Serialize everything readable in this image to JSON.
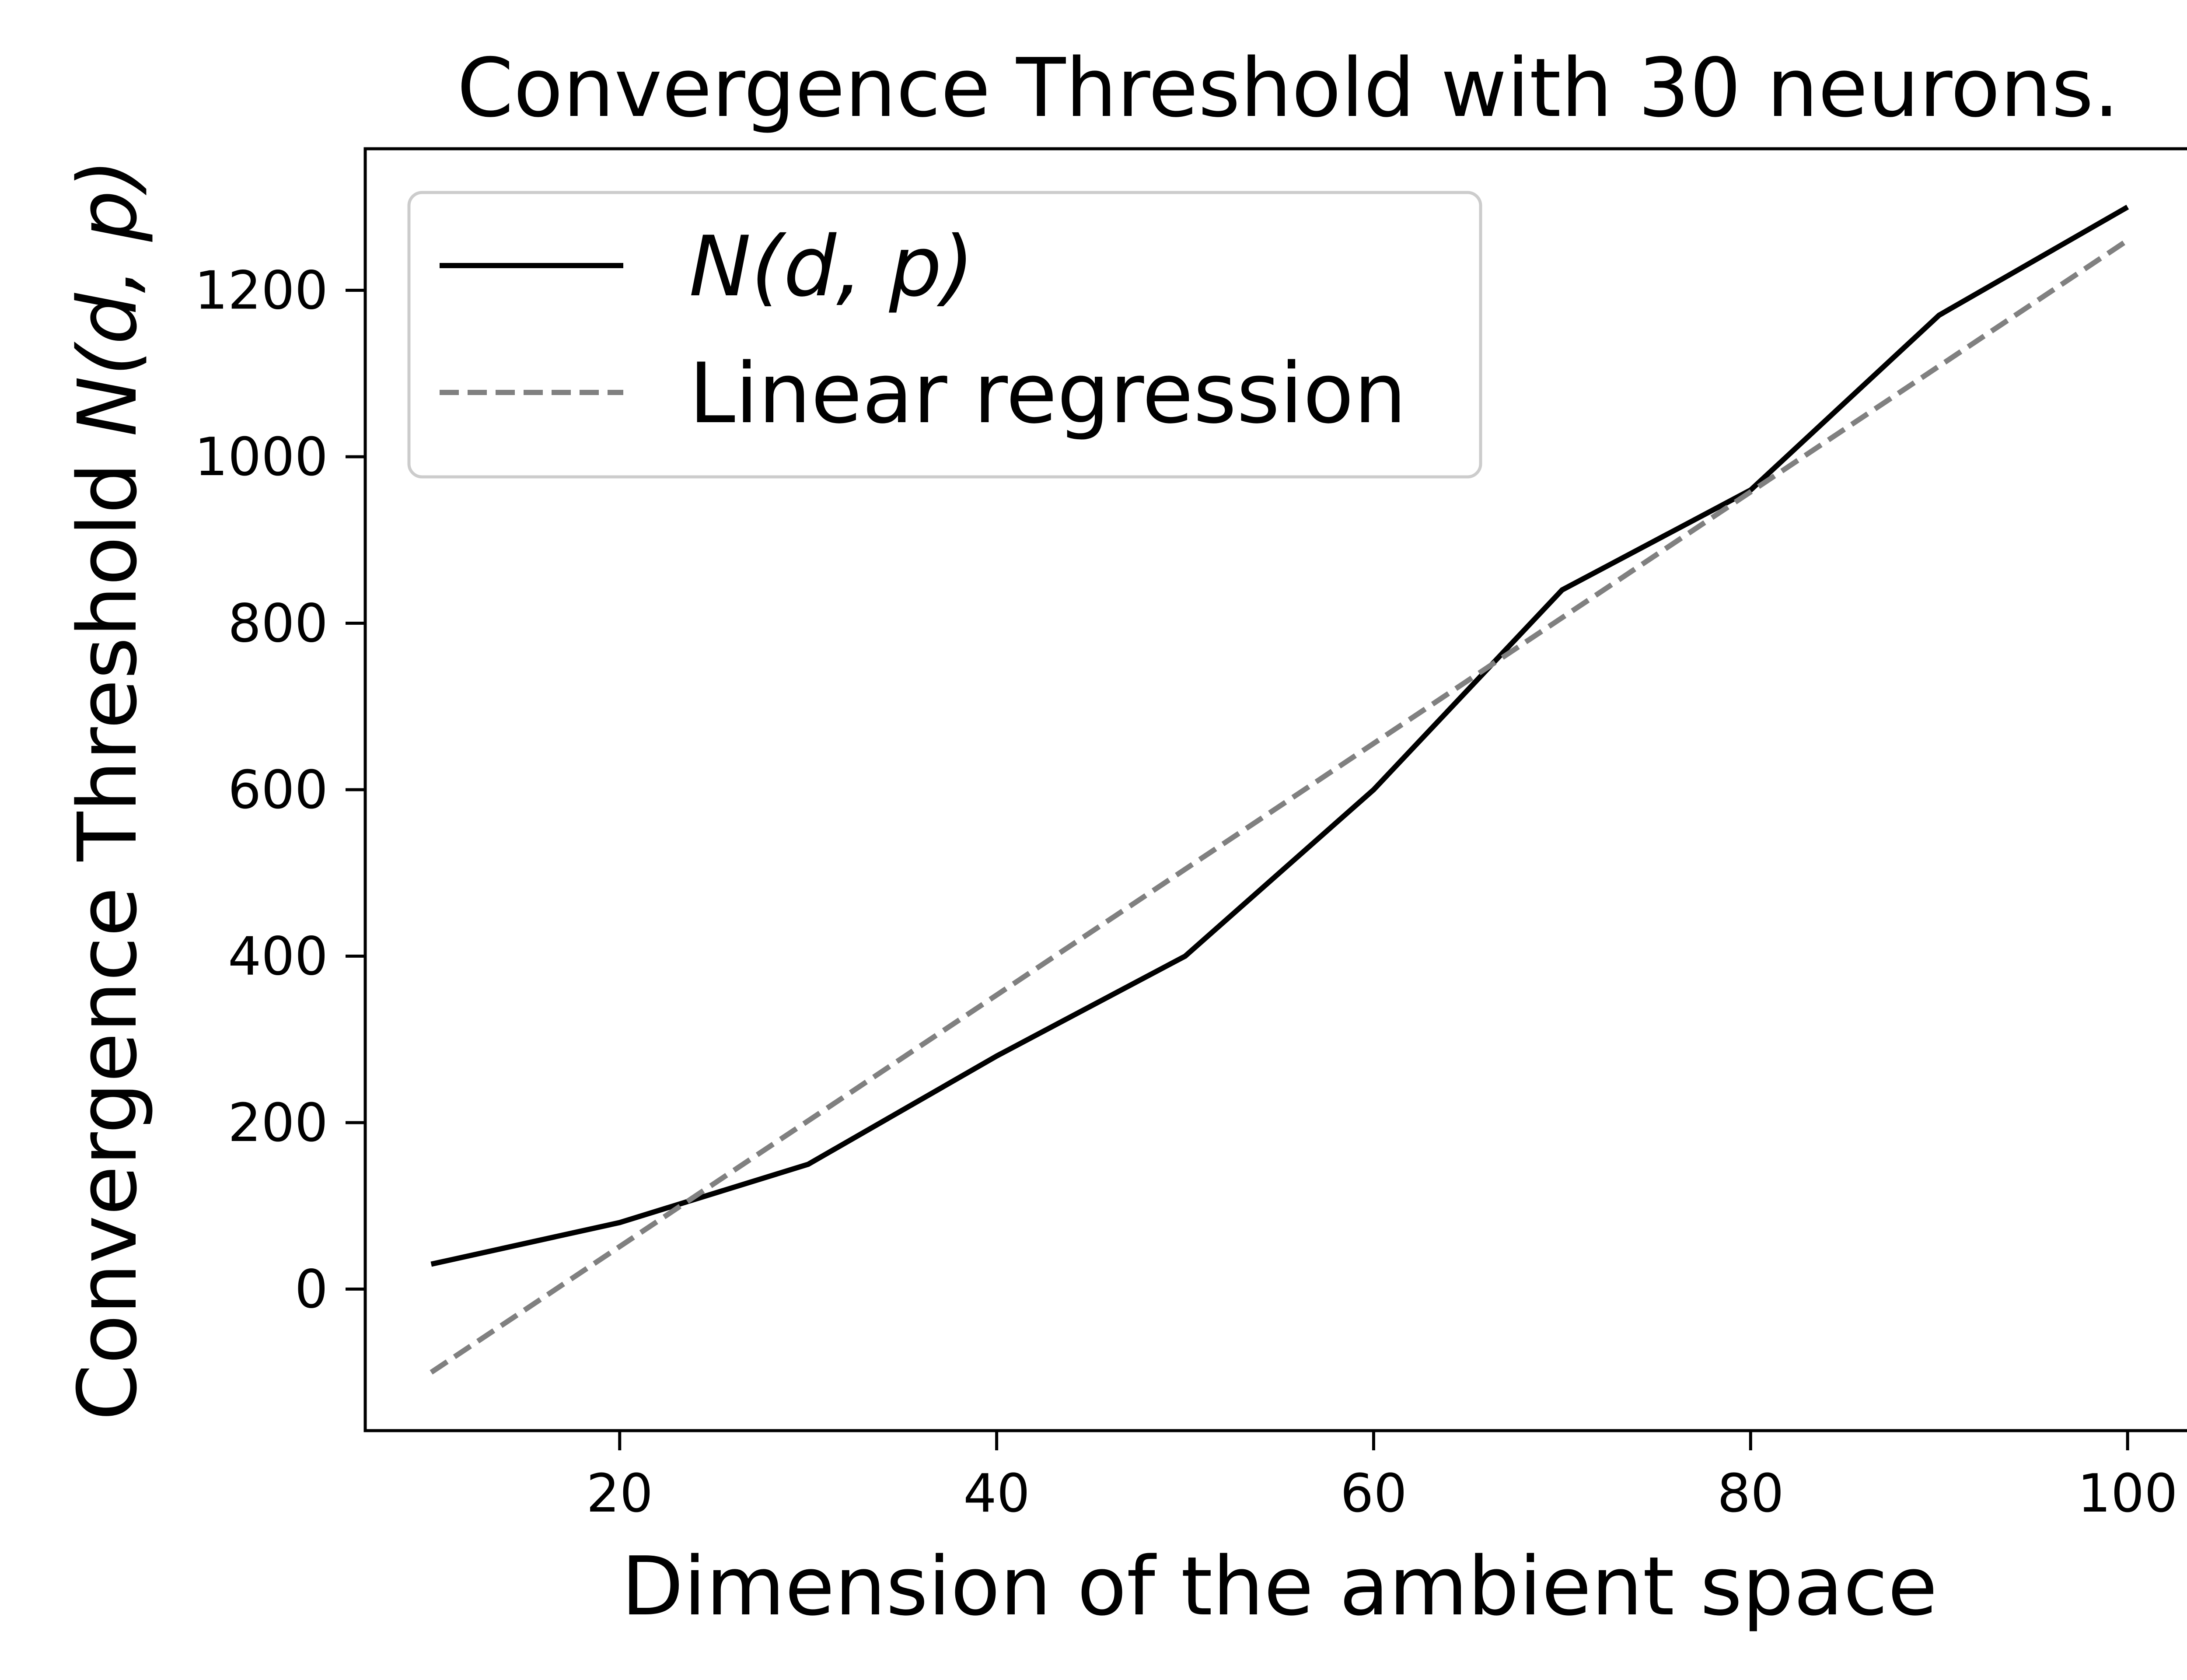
{
  "chart_data": {
    "type": "line",
    "title": "Convergence Threshold with 30 neurons.",
    "xlabel": "Dimension of the ambient space",
    "ylabel": {
      "prefix": "Convergence Threshold ",
      "math": "N(d, p)"
    },
    "xlim": [
      6.5,
      103.5
    ],
    "ylim": [
      -170,
      1370
    ],
    "xticks": [
      20,
      40,
      60,
      80,
      100
    ],
    "yticks": [
      0,
      200,
      400,
      600,
      800,
      1000,
      1200
    ],
    "xtick_labels": [
      "20",
      "40",
      "60",
      "80",
      "100"
    ],
    "ytick_labels": [
      "0",
      "200",
      "400",
      "600",
      "800",
      "1000",
      "1200"
    ],
    "grid": false,
    "legend_placement": "upper-left",
    "series": [
      {
        "name": "N(d, p)",
        "style": "solid",
        "color": "#000000",
        "x": [
          10,
          20,
          30,
          40,
          50,
          60,
          70,
          80,
          90,
          100
        ],
        "y": [
          30,
          80,
          150,
          280,
          400,
          600,
          840,
          960,
          1170,
          1300
        ]
      },
      {
        "name": "Linear regression",
        "style": "dashed",
        "color": "#808080",
        "x": [
          10,
          100
        ],
        "y": [
          -100,
          1260
        ]
      }
    ]
  }
}
